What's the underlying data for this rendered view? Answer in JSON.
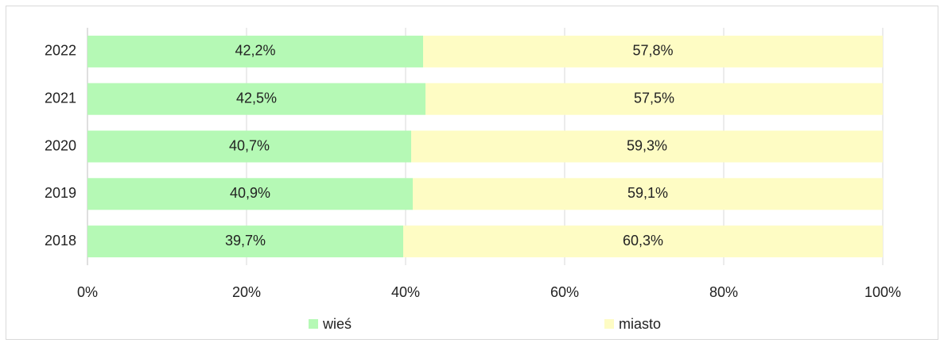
{
  "chart_data": {
    "type": "stacked-bar-horizontal",
    "categories": [
      "2022",
      "2021",
      "2020",
      "2019",
      "2018"
    ],
    "series": [
      {
        "name": "wieś",
        "color": "#b5f9b5",
        "values": [
          42.2,
          42.5,
          40.7,
          40.9,
          39.7
        ],
        "value_labels": [
          "42,2%",
          "42,5%",
          "40,7%",
          "40,9%",
          "39,7%"
        ]
      },
      {
        "name": "miasto",
        "color": "#fefcc4",
        "values": [
          57.8,
          57.5,
          59.3,
          59.1,
          60.3
        ],
        "value_labels": [
          "57,8%",
          "57,5%",
          "59,3%",
          "59,1%",
          "60,3%"
        ]
      }
    ],
    "xlim": [
      0,
      100
    ],
    "xticks": [
      {
        "value": 0,
        "label": "0%"
      },
      {
        "value": 20,
        "label": "20%"
      },
      {
        "value": 40,
        "label": "40%"
      },
      {
        "value": 60,
        "label": "60%"
      },
      {
        "value": 80,
        "label": "80%"
      },
      {
        "value": 100,
        "label": "100%"
      }
    ],
    "grid": true,
    "legend": "bottom"
  }
}
